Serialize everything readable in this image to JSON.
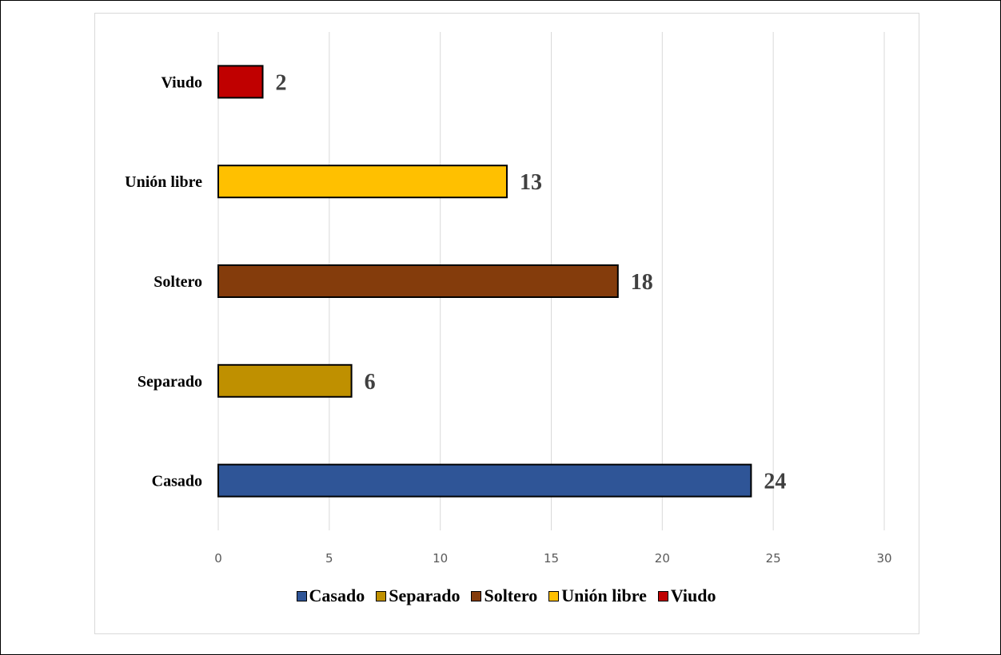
{
  "chart_data": {
    "type": "bar",
    "orientation": "horizontal",
    "categories": [
      "Casado",
      "Separado",
      "Soltero",
      "Unión libre",
      "Viudo"
    ],
    "values": [
      24,
      6,
      18,
      13,
      2
    ],
    "colors": [
      "#2f5597",
      "#bf9000",
      "#843c0c",
      "#ffc000",
      "#c00000"
    ],
    "xlim": [
      0,
      30
    ],
    "x_ticks": [
      "0",
      "5",
      "10",
      "15",
      "20",
      "25",
      "30"
    ],
    "grid": "vertical",
    "legend_position": "bottom",
    "data_labels": [
      "24",
      "6",
      "18",
      "13",
      "2"
    ],
    "title": "",
    "xlabel": "",
    "ylabel": ""
  }
}
